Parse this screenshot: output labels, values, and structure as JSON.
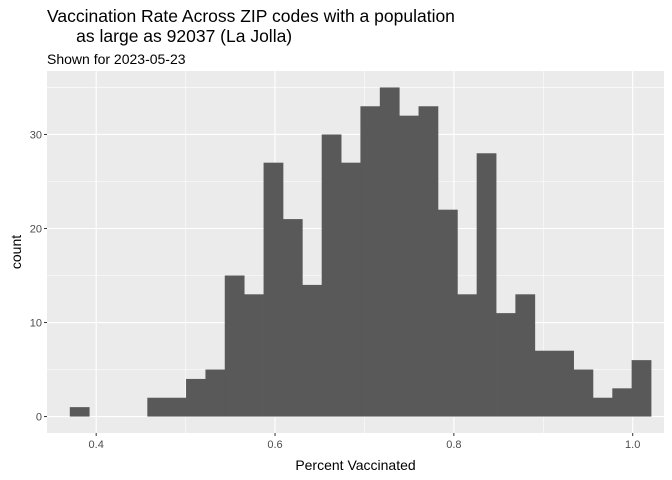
{
  "chart_data": {
    "type": "bar",
    "subtype": "histogram",
    "title": "Vaccination Rate Across ZIP codes with a population\n      as large as 92037 (La Jolla)",
    "subtitle": "Shown for 2023-05-23",
    "xlabel": "Percent Vaccinated",
    "ylabel": "count",
    "xlim": [
      0.345,
      1.035
    ],
    "ylim": [
      -1.75,
      36.75
    ],
    "x_ticks": [
      0.4,
      0.6,
      0.8,
      1.0
    ],
    "x_tick_labels": [
      "0.4",
      "0.6",
      "0.8",
      "1.0"
    ],
    "y_ticks": [
      0,
      10,
      20,
      30
    ],
    "y_tick_labels": [
      "0",
      "10",
      "20",
      "30"
    ],
    "bin_width": 0.02166,
    "bin_starts": [
      0.3705,
      0.3922,
      0.4138,
      0.4355,
      0.4572,
      0.4788,
      0.5005,
      0.5222,
      0.5438,
      0.5655,
      0.5872,
      0.6088,
      0.6305,
      0.6522,
      0.6738,
      0.6955,
      0.7172,
      0.7388,
      0.7605,
      0.7822,
      0.8038,
      0.8255,
      0.8472,
      0.8688,
      0.8905,
      0.9122,
      0.9338,
      0.9555,
      0.9772,
      0.9988
    ],
    "values": [
      1,
      0,
      0,
      0,
      2,
      2,
      4,
      5,
      15,
      13,
      27,
      21,
      14,
      30,
      27,
      33,
      35,
      32,
      33,
      22,
      13,
      28,
      11,
      13,
      7,
      7,
      5,
      2,
      3,
      6
    ],
    "bar_color": "#595959",
    "panel_background": "#ebebeb",
    "grid_color": "#ffffff",
    "grid": true,
    "legend": "none"
  }
}
